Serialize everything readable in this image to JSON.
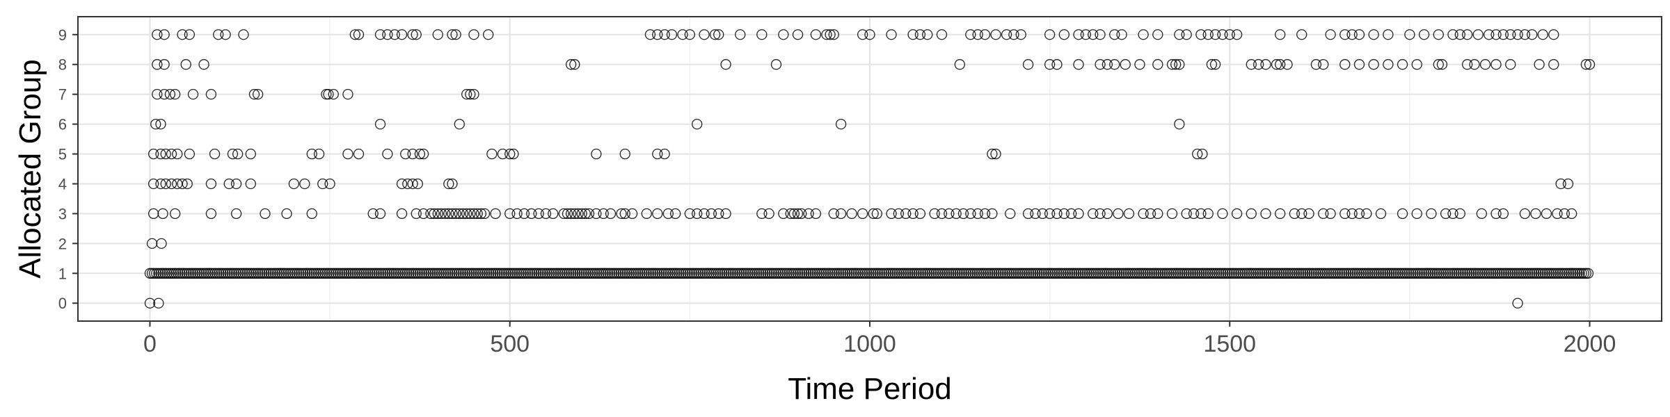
{
  "chart_data": {
    "type": "scatter",
    "title": "",
    "xlabel": "Time Period",
    "ylabel": "Allocated Group",
    "xlim": [
      -100,
      2100
    ],
    "ylim": [
      -0.6,
      9.6
    ],
    "xticks": [
      0,
      500,
      1000,
      1500,
      2000
    ],
    "yticks": [
      0,
      1,
      2,
      3,
      4,
      5,
      6,
      7,
      8,
      9
    ],
    "grid": true,
    "legend": "none",
    "marker": {
      "shape": "open-circle",
      "stroke": "#000000"
    },
    "series": [
      {
        "points": [
          {
            "group": 0,
            "x": [
              0,
              12,
              1900
            ]
          },
          {
            "group": 1,
            "x_range": [
              0,
              2000
            ],
            "note_density": "near-continuous"
          },
          {
            "group": 2,
            "x": [
              3,
              16
            ]
          },
          {
            "group": 3,
            "x": [
              5,
              18,
              35,
              85,
              120,
              160,
              190,
              225,
              310,
              320,
              350,
              370,
              380,
              390,
              395,
              400,
              405,
              410,
              415,
              420,
              425,
              430,
              435,
              440,
              445,
              450,
              455,
              460,
              465,
              480,
              500,
              510,
              520,
              530,
              540,
              550,
              560,
              575,
              580,
              585,
              590,
              595,
              600,
              605,
              610,
              620,
              630,
              640,
              655,
              660,
              670,
              690,
              705,
              720,
              730,
              750,
              760,
              770,
              780,
              790,
              800,
              850,
              860,
              880,
              890,
              895,
              900,
              905,
              915,
              925,
              950,
              960,
              975,
              990,
              1005,
              1010,
              1030,
              1040,
              1050,
              1060,
              1070,
              1090,
              1100,
              1110,
              1120,
              1130,
              1140,
              1150,
              1160,
              1170,
              1195,
              1220,
              1230,
              1240,
              1250,
              1260,
              1270,
              1280,
              1290,
              1310,
              1320,
              1330,
              1345,
              1360,
              1380,
              1390,
              1400,
              1420,
              1440,
              1450,
              1460,
              1470,
              1490,
              1510,
              1530,
              1550,
              1570,
              1590,
              1600,
              1610,
              1630,
              1640,
              1660,
              1670,
              1680,
              1690,
              1710,
              1740,
              1760,
              1780,
              1800,
              1810,
              1820,
              1850,
              1870,
              1880,
              1910,
              1925,
              1940,
              1955,
              1965,
              1975
            ]
          },
          {
            "group": 4,
            "x": [
              5,
              15,
              22,
              30,
              38,
              45,
              52,
              85,
              110,
              120,
              140,
              200,
              215,
              240,
              250,
              350,
              358,
              365,
              372,
              415,
              420,
              1960,
              1970
            ]
          },
          {
            "group": 5,
            "x": [
              5,
              15,
              22,
              30,
              38,
              55,
              90,
              115,
              122,
              140,
              225,
              235,
              275,
              290,
              330,
              355,
              365,
              375,
              380,
              475,
              490,
              500,
              505,
              620,
              660,
              705,
              715,
              1170,
              1175,
              1455,
              1462
            ]
          },
          {
            "group": 6,
            "x": [
              8,
              15,
              320,
              430,
              760,
              960,
              1430
            ]
          },
          {
            "group": 7,
            "x": [
              10,
              20,
              28,
              35,
              60,
              85,
              145,
              150,
              245,
              248,
              255,
              275,
              440,
              445,
              450
            ]
          },
          {
            "group": 8,
            "x": [
              10,
              20,
              50,
              75,
              585,
              590,
              800,
              870,
              1125,
              1220,
              1250,
              1260,
              1290,
              1320,
              1330,
              1340,
              1355,
              1375,
              1400,
              1420,
              1425,
              1430,
              1475,
              1480,
              1530,
              1540,
              1550,
              1565,
              1570,
              1580,
              1620,
              1630,
              1660,
              1680,
              1700,
              1720,
              1740,
              1760,
              1790,
              1795,
              1830,
              1840,
              1855,
              1870,
              1890,
              1930,
              1950,
              1995,
              2000
            ]
          },
          {
            "group": 9,
            "x": [
              10,
              20,
              45,
              55,
              95,
              105,
              130,
              285,
              290,
              320,
              330,
              340,
              350,
              365,
              370,
              400,
              420,
              425,
              450,
              470,
              695,
              705,
              715,
              725,
              740,
              750,
              770,
              785,
              790,
              820,
              850,
              880,
              900,
              925,
              940,
              945,
              950,
              990,
              1000,
              1030,
              1060,
              1070,
              1080,
              1100,
              1140,
              1150,
              1160,
              1175,
              1190,
              1200,
              1210,
              1250,
              1270,
              1290,
              1300,
              1310,
              1320,
              1340,
              1350,
              1380,
              1400,
              1430,
              1440,
              1460,
              1470,
              1480,
              1490,
              1500,
              1510,
              1570,
              1600,
              1640,
              1660,
              1670,
              1680,
              1700,
              1720,
              1750,
              1770,
              1790,
              1810,
              1820,
              1830,
              1845,
              1860,
              1870,
              1880,
              1890,
              1900,
              1910,
              1920,
              1935,
              1950
            ]
          }
        ]
      }
    ]
  }
}
